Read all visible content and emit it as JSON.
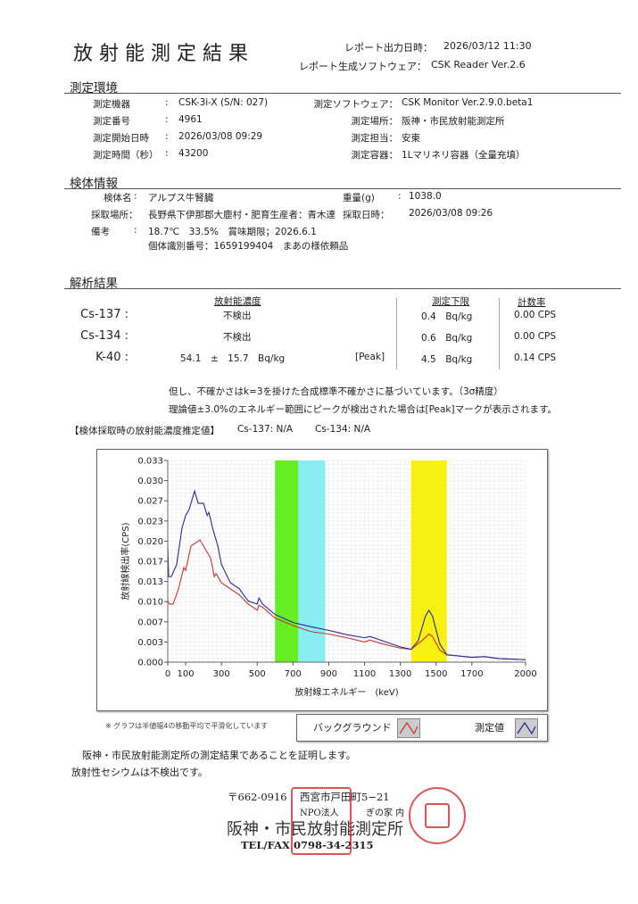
{
  "header": {
    "title": "放射能測定結果",
    "output_label": "レポート出力日時：",
    "output_value": "2026/03/12 11:30",
    "software_label": "レポート生成ソフトウェア：",
    "software_value": "CSK Reader Ver.2.6"
  },
  "env": {
    "heading": "測定環境",
    "left": [
      {
        "label": "測定機器",
        "value": "CSK-3i-X (S/N: 027)"
      },
      {
        "label": "測定番号",
        "value": "4961"
      },
      {
        "label": "測定開始日時",
        "value": "2026/03/08 09:29"
      },
      {
        "label": "測定時間（秒）",
        "value": "43200"
      }
    ],
    "right": [
      {
        "label": "測定ソフトウェア：",
        "value": "CSK Monitor Ver.2.9.0.beta1"
      },
      {
        "label": "測定場所：",
        "value": "阪神・市民放射能測定所"
      },
      {
        "label": "測定担当：",
        "value": "安東"
      },
      {
        "label": "測定容器：",
        "value": "1Lマリネリ容器（全量充填）"
      }
    ]
  },
  "sample": {
    "heading": "検体情報",
    "name_label": "検体名",
    "name": "アルプス牛腎臓",
    "weight_label": "重量(g)",
    "weight": "1038.0",
    "place_label": "採取場所：",
    "place": "長野県下伊那郡大鹿村・肥育生産者：青木達",
    "date_label": "採取日時：",
    "date": "2026/03/08 09:26",
    "note_label": "備考",
    "note1": "18.7℃　33.5%　賞味期限；2026.6.1",
    "note2": "個体識別番号：1659199404　まあの様依頼品"
  },
  "results": {
    "heading": "解析結果",
    "col_conc": "放射能濃度",
    "col_limit": "測定下限",
    "col_rate": "計数率",
    "rows": [
      {
        "nuclide": "Cs-137 :",
        "conc": "不検出",
        "peak": "",
        "limit": "0.4　Bq/kg",
        "rate": "0.00 CPS"
      },
      {
        "nuclide": "Cs-134 :",
        "conc": "不検出",
        "peak": "",
        "limit": "0.6　Bq/kg",
        "rate": "0.00 CPS"
      },
      {
        "nuclide": "K-40 :",
        "conc": "54.1　±　15.7　Bq/kg",
        "peak": "[Peak]",
        "limit": "4.5　Bq/kg",
        "rate": "0.14 CPS"
      }
    ],
    "note1": "但し、不確かさはk=3を掛けた合成標準不確かさに基づいています。（3σ精度）",
    "note2": "理論値±3.0%のエネルギー範囲にピークが検出された場合は[Peak]マークが表示されます。",
    "estimate_label": "【検体採取時の放射能濃度推定値】",
    "estimate_cs137": "Cs-137:  N/A",
    "estimate_cs134": "Cs-134:  N/A"
  },
  "chart_data": {
    "type": "line",
    "xlabel": "放射線エネルギー　(keV)",
    "ylabel": "放射線検出率(CPS)",
    "xlim": [
      0,
      2000
    ],
    "ylim": [
      0,
      0.033
    ],
    "xticks": [
      "0",
      "100",
      "300",
      "500",
      "700",
      "900",
      "1100",
      "1300",
      "1500",
      "1700",
      "2000"
    ],
    "xtick_values": [
      0,
      100,
      300,
      500,
      700,
      900,
      1100,
      1300,
      1500,
      1700,
      2000
    ],
    "yticks": [
      "0.000",
      "0.003",
      "0.007",
      "0.010",
      "0.013",
      "0.017",
      "0.020",
      "0.023",
      "0.027",
      "0.030",
      "0.033"
    ],
    "grid": true,
    "bands": [
      {
        "from": 600,
        "to": 730,
        "color": "#66ee22"
      },
      {
        "from": 730,
        "to": 880,
        "color": "#88eef4"
      },
      {
        "from": 1360,
        "to": 1560,
        "color": "#f8f010"
      }
    ],
    "series": [
      {
        "name": "測定値",
        "color": "#2a2a9a",
        "x": [
          0,
          5,
          20,
          50,
          80,
          100,
          120,
          140,
          150,
          170,
          200,
          220,
          230,
          250,
          280,
          300,
          350,
          400,
          450,
          500,
          510,
          530,
          600,
          700,
          800,
          900,
          1000,
          1100,
          1130,
          1200,
          1300,
          1360,
          1400,
          1440,
          1460,
          1480,
          1520,
          1560,
          1700,
          1770,
          1850,
          2000
        ],
        "y": [
          0.019,
          0.014,
          0.014,
          0.016,
          0.022,
          0.024,
          0.025,
          0.027,
          0.028,
          0.026,
          0.026,
          0.024,
          0.0245,
          0.022,
          0.019,
          0.016,
          0.013,
          0.012,
          0.01,
          0.0095,
          0.0105,
          0.0095,
          0.0078,
          0.0065,
          0.0058,
          0.0052,
          0.0045,
          0.004,
          0.0042,
          0.0035,
          0.0025,
          0.0021,
          0.0035,
          0.0075,
          0.0085,
          0.0075,
          0.003,
          0.0012,
          0.0008,
          0.0009,
          0.0006,
          0.0004
        ]
      },
      {
        "name": "バックグラウンド",
        "color": "#cc3333",
        "x": [
          0,
          10,
          30,
          60,
          90,
          100,
          130,
          170,
          180,
          220,
          240,
          260,
          270,
          300,
          400,
          450,
          500,
          510,
          530,
          600,
          700,
          800,
          900,
          1000,
          1100,
          1130,
          1200,
          1300,
          1360,
          1420,
          1460,
          1480,
          1520,
          1560,
          1700,
          1770,
          1850,
          2000
        ],
        "y": [
          0.01,
          0.0095,
          0.0095,
          0.012,
          0.0155,
          0.015,
          0.019,
          0.0198,
          0.02,
          0.018,
          0.017,
          0.014,
          0.0145,
          0.013,
          0.011,
          0.0095,
          0.0085,
          0.0093,
          0.009,
          0.0072,
          0.006,
          0.005,
          0.0046,
          0.004,
          0.0033,
          0.0036,
          0.003,
          0.0023,
          0.0021,
          0.0035,
          0.0046,
          0.0042,
          0.002,
          0.0012,
          0.0008,
          0.0009,
          0.0006,
          0.0004
        ]
      }
    ],
    "smoothing_note": "※ グラフは半値幅4の移動平均で平滑化しています",
    "legend_bg": "バックグラウンド",
    "legend_meas": "測定値",
    "legend_placement": "bottom-right"
  },
  "footer": {
    "cert": "阪神・市民放射能測定所の測定結果であることを証明します。",
    "cesium": "放射性セシウムは不検出です。",
    "postal": "〒662-0916",
    "address": "西宮市戸田町5−21",
    "address2": "NPO法人",
    "address3": "ぎの家 内",
    "org": "阪神・市民放射能測定所",
    "tel": "TEL/FAX 0798-34-2315"
  }
}
